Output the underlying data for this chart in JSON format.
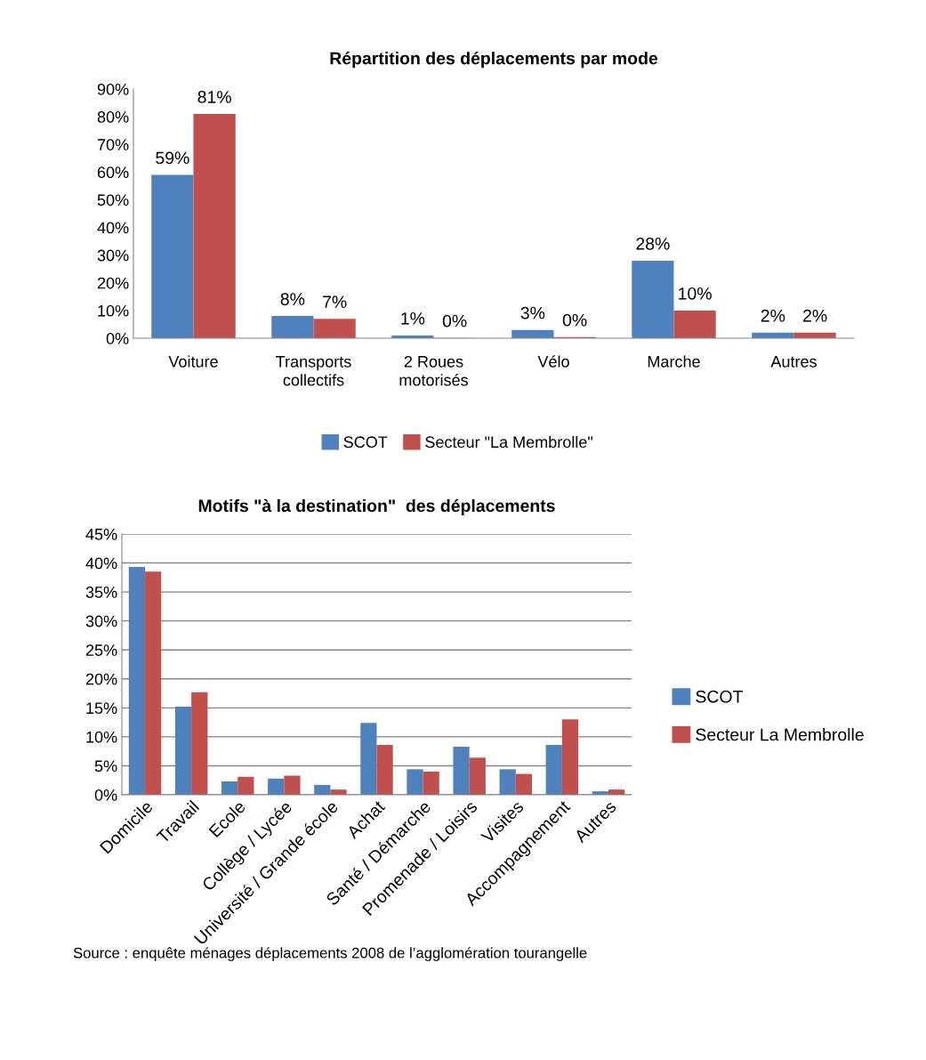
{
  "chart_data": [
    {
      "type": "bar",
      "title": "Répartition des déplacements par mode",
      "categories": [
        "Voiture",
        "Transports\ncollectifs",
        "2 Roues\nmotorisés",
        "Vélo",
        "Marche",
        "Autres"
      ],
      "series": [
        {
          "name": "SCOT",
          "color": "#4f81bd",
          "values": [
            59,
            8,
            1,
            3,
            28,
            2
          ],
          "value_labels": [
            "59%",
            "8%",
            "1%",
            "3%",
            "28%",
            "2%"
          ]
        },
        {
          "name": "Secteur \"La Membrolle\"",
          "color": "#c0504d",
          "values": [
            81,
            7,
            0.1,
            0.4,
            10,
            2
          ],
          "value_labels": [
            "81%",
            "7%",
            "0%",
            "0%",
            "10%",
            "2%"
          ]
        }
      ],
      "ylim": [
        0,
        90
      ],
      "yticks": [
        {
          "value": 0,
          "label": "0%"
        },
        {
          "value": 10,
          "label": "10%"
        },
        {
          "value": 20,
          "label": "20%"
        },
        {
          "value": 30,
          "label": "30%"
        },
        {
          "value": 40,
          "label": "40%"
        },
        {
          "value": 50,
          "label": "50%"
        },
        {
          "value": 60,
          "label": "60%"
        },
        {
          "value": 70,
          "label": "70%"
        },
        {
          "value": 80,
          "label": "80%"
        },
        {
          "value": 90,
          "label": "90%"
        }
      ],
      "grid": false,
      "legend": "bottom"
    },
    {
      "type": "bar",
      "title": "Motifs \"à la destination\"  des déplacements",
      "categories": [
        "Domicile",
        "Travail",
        "Ecole",
        "Collège / Lycée",
        "Université / Grande école",
        "Achat",
        "Santé / Démarche",
        "Promenade / Loisirs",
        "Visites",
        "Accompagnement",
        "Autres"
      ],
      "series": [
        {
          "name": "SCOT",
          "color": "#4f81bd",
          "values": [
            39.3,
            15.2,
            2.3,
            2.8,
            1.7,
            12.4,
            4.4,
            8.3,
            4.4,
            8.6,
            0.6
          ]
        },
        {
          "name": "Secteur La Membrolle",
          "color": "#c0504d",
          "values": [
            38.5,
            17.7,
            3.1,
            3.3,
            0.9,
            8.6,
            4.0,
            6.4,
            3.6,
            13.0,
            0.9
          ]
        }
      ],
      "ylim": [
        0,
        45
      ],
      "yticks": [
        {
          "value": 0,
          "label": "0%"
        },
        {
          "value": 5,
          "label": "5%"
        },
        {
          "value": 10,
          "label": "10%"
        },
        {
          "value": 15,
          "label": "15%"
        },
        {
          "value": 20,
          "label": "20%"
        },
        {
          "value": 25,
          "label": "25%"
        },
        {
          "value": 30,
          "label": "30%"
        },
        {
          "value": 35,
          "label": "35%"
        },
        {
          "value": 40,
          "label": "40%"
        },
        {
          "value": 45,
          "label": "45%"
        }
      ],
      "grid": "y",
      "legend": "right",
      "annotations": [
        "Source : enquête ménages déplacements 2008 de l’agglomération tourangelle"
      ]
    }
  ]
}
